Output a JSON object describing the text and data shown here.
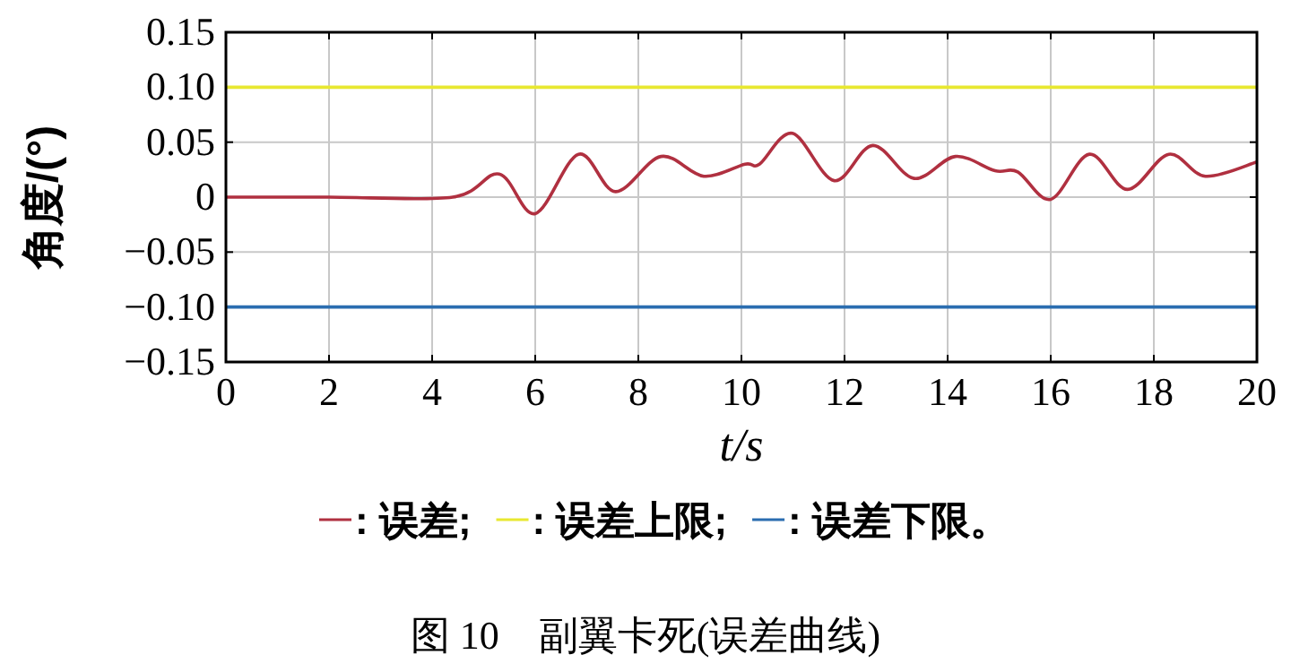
{
  "chart_data": {
    "type": "line",
    "xlabel": "t/s",
    "ylabel": "角度/(°)",
    "annotations": [
      "图 10　副翼卡死(误差曲线)"
    ],
    "xlim": [
      0,
      20
    ],
    "xticks": [
      0,
      2,
      4,
      6,
      8,
      10,
      12,
      14,
      16,
      18,
      20
    ],
    "ylim": [
      -0.15,
      0.15
    ],
    "yticks": [
      {
        "value": -0.15,
        "label": "−0.15"
      },
      {
        "value": -0.1,
        "label": "−0.10"
      },
      {
        "value": -0.05,
        "label": "−0.05"
      },
      0,
      0.05,
      {
        "value": 0.1,
        "label": "0.10"
      },
      0.15
    ],
    "grid": true,
    "legend": "bottom",
    "series": [
      {
        "name": ": 误差;",
        "color": "#b03040",
        "x": [
          0,
          2,
          4.4,
          5.3,
          6.0,
          6.84,
          7.56,
          8.44,
          9.27,
          10.07,
          10.35,
          10.99,
          11.8,
          12.55,
          13.35,
          14.15,
          14.92,
          15.36,
          16.0,
          16.75,
          17.49,
          18.29,
          19.0,
          20
        ],
        "values": [
          0,
          0,
          0,
          0.021,
          -0.015,
          0.039,
          0.005,
          0.037,
          0.019,
          0.03,
          0.03,
          0.058,
          0.015,
          0.047,
          0.017,
          0.037,
          0.024,
          0.023,
          -0.002,
          0.039,
          0.007,
          0.039,
          0.019,
          0.032
        ]
      },
      {
        "name": ": 误差上限;",
        "color": "#e8e830",
        "x": [
          0,
          20
        ],
        "values": [
          0.1,
          0.1
        ]
      },
      {
        "name": ": 误差下限。",
        "color": "#2a6db0",
        "x": [
          0,
          20
        ],
        "values": [
          -0.1,
          -0.1
        ]
      }
    ]
  }
}
